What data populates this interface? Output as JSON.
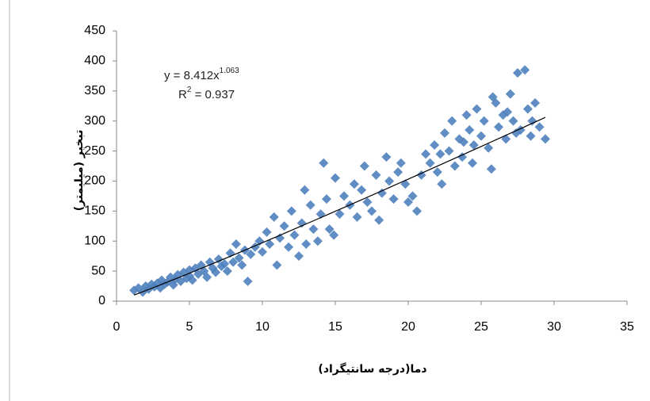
{
  "chart_data": {
    "type": "scatter",
    "x_label": "دما(درجه سانتیگراد)",
    "y_label": "تبخیر (میلیمتر)",
    "color": "#4f81bd",
    "marker": "diamond",
    "xlim": [
      0,
      35
    ],
    "xticks": [
      0,
      5,
      10,
      15,
      20,
      25,
      30,
      35
    ],
    "ylim": [
      0,
      450
    ],
    "yticks": [
      0,
      50,
      100,
      150,
      200,
      250,
      300,
      350,
      400,
      450
    ],
    "grid": false,
    "trendline": {
      "type": "power",
      "label_y": "y = ",
      "a": 8.412,
      "label_x": "x",
      "b": 1.063,
      "label_r": "R",
      "r_sup": "2",
      "label_eq": " = ",
      "r2": 0.937
    },
    "x": [
      1.2,
      1.5,
      1.8,
      2,
      2.2,
      2.4,
      2.6,
      2.8,
      3,
      3.1,
      3.3,
      3.5,
      3.7,
      3.9,
      4,
      4.2,
      4.4,
      4.6,
      4.8,
      5,
      5,
      5.2,
      5.4,
      5.6,
      5.8,
      6,
      6.2,
      6.4,
      6.6,
      6.8,
      7,
      7.2,
      7.4,
      7.6,
      7.8,
      8,
      8.2,
      8.4,
      8.6,
      8.8,
      9,
      9.2,
      9.5,
      9.8,
      10,
      10.3,
      10.5,
      10.8,
      11,
      11.2,
      11.5,
      11.8,
      12,
      12.2,
      12.5,
      12.7,
      12.9,
      13,
      13.3,
      13.5,
      13.8,
      14,
      14.2,
      14.4,
      14.6,
      14.9,
      15,
      15.3,
      15.6,
      16,
      16.3,
      16.5,
      16.8,
      17,
      17.2,
      17.5,
      17.8,
      18,
      18.2,
      18.5,
      18.7,
      19,
      19.3,
      19.5,
      19.8,
      20,
      20.3,
      20.6,
      20.9,
      21.2,
      21.5,
      21.8,
      22,
      22.3,
      22.5,
      22.8,
      23,
      23.2,
      23.5,
      23.7,
      24,
      24.2,
      24.5,
      24.7,
      25,
      25.2,
      25.5,
      25.7,
      26,
      26.2,
      26.5,
      26.7,
      27,
      27.2,
      27.5,
      27.7,
      28,
      28.2,
      28.5,
      28.7,
      29,
      29.4,
      23.8,
      26.8,
      27.4,
      28.4,
      25.8,
      22.2,
      24.4
    ],
    "y": [
      18,
      22,
      15,
      25,
      20,
      28,
      24,
      30,
      22,
      35,
      28,
      32,
      40,
      27,
      36,
      44,
      33,
      48,
      38,
      52,
      42,
      35,
      55,
      45,
      60,
      50,
      40,
      65,
      55,
      48,
      70,
      58,
      62,
      50,
      80,
      65,
      95,
      72,
      60,
      85,
      33,
      78,
      90,
      100,
      82,
      115,
      95,
      140,
      60,
      105,
      125,
      90,
      150,
      110,
      75,
      130,
      185,
      95,
      160,
      120,
      100,
      145,
      230,
      170,
      120,
      110,
      205,
      145,
      175,
      160,
      195,
      140,
      185,
      225,
      165,
      150,
      210,
      135,
      180,
      240,
      200,
      170,
      215,
      230,
      195,
      165,
      175,
      150,
      210,
      245,
      230,
      260,
      215,
      195,
      280,
      250,
      300,
      225,
      270,
      240,
      310,
      285,
      260,
      320,
      275,
      300,
      255,
      220,
      330,
      290,
      310,
      270,
      345,
      300,
      380,
      285,
      385,
      320,
      300,
      330,
      290,
      270,
      265,
      315,
      280,
      275,
      340,
      245,
      230
    ]
  }
}
